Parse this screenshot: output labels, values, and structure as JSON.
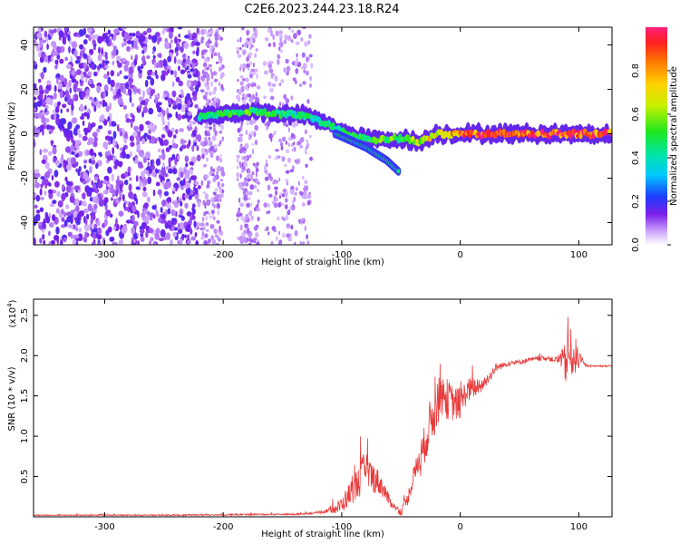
{
  "title": "C2E6.2023.244.23.18.R24",
  "colors": {
    "snr_line": "#e83a3a",
    "spectrogram_low": "#7b1fe8",
    "spectrogram_mid": "#00d9d9",
    "spectrogram_high": "#ff1f3a"
  },
  "chart_data": [
    {
      "type": "heatmap",
      "title": "C2E6.2023.244.23.18.R24",
      "xlabel": "Height of straight line (km)",
      "ylabel": "Frequency (Hz)",
      "xlim": [
        -360,
        128
      ],
      "ylim": [
        -50,
        48
      ],
      "x_ticks": [
        -300,
        -200,
        -100,
        0,
        100
      ],
      "x_tick_labels": [
        "-300",
        "-200",
        "-100",
        "0",
        "100"
      ],
      "y_ticks": [
        -40,
        -20,
        0,
        20,
        40
      ],
      "y_tick_labels": [
        "-40",
        "-20",
        "0",
        "20",
        "40"
      ],
      "colorbar": {
        "label": "Normalized spectral amplitude",
        "range": [
          0.0,
          1.0
        ],
        "ticks": [
          0.0,
          0.2,
          0.4,
          0.6,
          0.8
        ],
        "tick_labels": [
          "0.0",
          "0.2",
          "0.4",
          "0.6",
          "0.8"
        ],
        "colormap": "rainbow"
      },
      "features": {
        "noise_region_x": [
          -360,
          -220
        ],
        "faint_noise_bands_x": [
          [
            -218,
            -200
          ],
          [
            -188,
            -170
          ],
          [
            -165,
            -125
          ]
        ],
        "signal_track": [
          {
            "x": -220,
            "y": 8,
            "amp": 0.45
          },
          {
            "x": -200,
            "y": 9,
            "amp": 0.5
          },
          {
            "x": -175,
            "y": 10,
            "amp": 0.55
          },
          {
            "x": -150,
            "y": 9,
            "amp": 0.5
          },
          {
            "x": -130,
            "y": 8,
            "amp": 0.45
          },
          {
            "x": -110,
            "y": 4,
            "amp": 0.45
          },
          {
            "x": -90,
            "y": -1,
            "amp": 0.5
          },
          {
            "x": -70,
            "y": -3,
            "amp": 0.55
          },
          {
            "x": -50,
            "y": -2,
            "amp": 0.55
          },
          {
            "x": -35,
            "y": -4,
            "amp": 0.65
          },
          {
            "x": -20,
            "y": 0,
            "amp": 0.75
          },
          {
            "x": -5,
            "y": 0,
            "amp": 0.85
          },
          {
            "x": 10,
            "y": 0,
            "amp": 0.95
          },
          {
            "x": 90,
            "y": 0,
            "amp": 0.95
          },
          {
            "x": 128,
            "y": 0,
            "amp": 0.95
          }
        ],
        "secondary_track": [
          {
            "x": -105,
            "y": 0
          },
          {
            "x": -80,
            "y": -6
          },
          {
            "x": -62,
            "y": -12
          },
          {
            "x": -52,
            "y": -17
          }
        ]
      }
    },
    {
      "type": "line",
      "xlabel": "Height of straight line (km)",
      "ylabel": "SNR (10 * v/v)",
      "y_multiplier_label": "(x10",
      "y_multiplier_exp": "4",
      "y_multiplier_close": ")",
      "xlim": [
        -360,
        128
      ],
      "ylim": [
        0,
        2.7
      ],
      "x_ticks": [
        -300,
        -200,
        -100,
        0,
        100
      ],
      "x_tick_labels": [
        "-300",
        "-200",
        "-100",
        "0",
        "100"
      ],
      "y_ticks": [
        0.5,
        1.0,
        1.5,
        2.0,
        2.5
      ],
      "y_tick_labels": [
        "0.5",
        "1.0",
        "1.5",
        "2.0",
        "2.5"
      ],
      "series": [
        {
          "x": [
            -360,
            -250,
            -170,
            -140,
            -120,
            -105,
            -100,
            -95,
            -90,
            -85,
            -80,
            -75,
            -70,
            -65,
            -60,
            -55,
            -50,
            -45,
            -40,
            -35,
            -30,
            -25,
            -20,
            -17,
            -15,
            -10,
            -5,
            0,
            5,
            10,
            15,
            20,
            25,
            30,
            40,
            50,
            60,
            70,
            80,
            85,
            88,
            90,
            93,
            95,
            97,
            100,
            105,
            110,
            128
          ],
          "y": [
            0.02,
            0.02,
            0.03,
            0.03,
            0.05,
            0.1,
            0.15,
            0.25,
            0.35,
            0.45,
            0.6,
            0.5,
            0.45,
            0.35,
            0.2,
            0.12,
            0.06,
            0.2,
            0.45,
            0.7,
            0.9,
            1.2,
            1.35,
            1.6,
            1.5,
            1.45,
            1.4,
            1.4,
            1.55,
            1.6,
            1.6,
            1.65,
            1.75,
            1.85,
            1.9,
            1.92,
            1.95,
            1.97,
            1.95,
            1.95,
            1.9,
            1.95,
            2.0,
            2.05,
            2.0,
            1.95,
            1.88,
            1.87,
            1.87
          ]
        }
      ],
      "noise_amplitude": [
        {
          "x": -360,
          "a": 0.01
        },
        {
          "x": -120,
          "a": 0.02
        },
        {
          "x": -110,
          "a": 0.06
        },
        {
          "x": -95,
          "a": 0.25
        },
        {
          "x": -80,
          "a": 0.45
        },
        {
          "x": -70,
          "a": 0.3
        },
        {
          "x": -55,
          "a": 0.05
        },
        {
          "x": -40,
          "a": 0.2
        },
        {
          "x": -30,
          "a": 0.45
        },
        {
          "x": -20,
          "a": 0.6
        },
        {
          "x": -10,
          "a": 0.45
        },
        {
          "x": 0,
          "a": 0.35
        },
        {
          "x": 20,
          "a": 0.15
        },
        {
          "x": 40,
          "a": 0.05
        },
        {
          "x": 80,
          "a": 0.06
        },
        {
          "x": 85,
          "a": 0.2
        },
        {
          "x": 90,
          "a": 0.6
        },
        {
          "x": 95,
          "a": 0.6
        },
        {
          "x": 100,
          "a": 0.2
        },
        {
          "x": 106,
          "a": 0.02
        },
        {
          "x": 128,
          "a": 0.02
        }
      ]
    }
  ]
}
